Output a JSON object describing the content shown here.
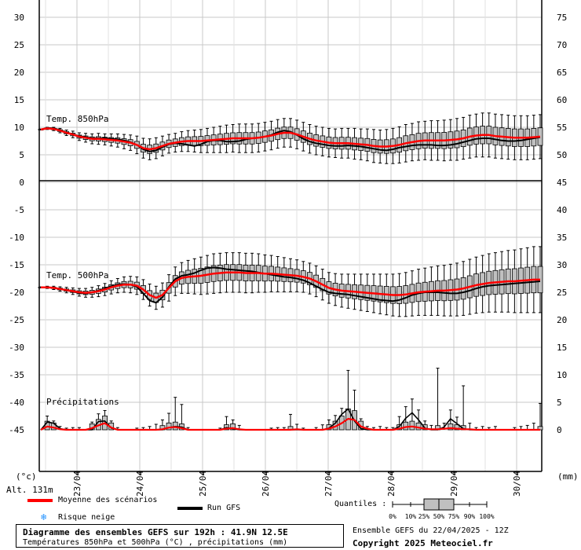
{
  "chart_data": {
    "type": "boxplot",
    "title": "Diagramme des ensembles GEFS sur 192h : 41.9N 12.5E",
    "subtitle": "Températures 850hPa et 500hPa (°C) , précipitations (mm)",
    "left_axis_label": "(°c)",
    "right_axis_label": "(mm)",
    "altitude_label": "Alt. 131m",
    "left_ticks": [
      30,
      25,
      20,
      15,
      10,
      5,
      0,
      -5,
      -10,
      -15,
      -20,
      -25,
      -30,
      -35,
      -40,
      -45
    ],
    "right_ticks": [
      75,
      70,
      65,
      60,
      55,
      50,
      45,
      40,
      35,
      30,
      25,
      20,
      15,
      10,
      5,
      0
    ],
    "x_dates": [
      "23/04",
      "24/04",
      "25/04",
      "26/04",
      "27/04",
      "28/04",
      "29/04",
      "30/04"
    ],
    "panels": [
      {
        "name": "Temp. 850hPa",
        "mean": [
          9.6,
          9.8,
          9.7,
          9.4,
          9.0,
          8.7,
          8.3,
          8.1,
          7.9,
          7.9,
          7.8,
          7.7,
          7.6,
          7.4,
          7.2,
          6.8,
          6.2,
          6.0,
          6.2,
          6.6,
          7.0,
          7.2,
          7.4,
          7.5,
          7.5,
          7.5,
          7.6,
          7.7,
          7.8,
          7.9,
          8.0,
          8.0,
          8.0,
          8.0,
          8.1,
          8.3,
          8.5,
          8.8,
          9.0,
          9.0,
          8.7,
          8.3,
          7.9,
          7.6,
          7.4,
          7.2,
          7.1,
          7.1,
          7.1,
          7.0,
          6.9,
          6.8,
          6.6,
          6.5,
          6.5,
          6.6,
          6.8,
          7.1,
          7.3,
          7.5,
          7.6,
          7.6,
          7.6,
          7.6,
          7.7,
          7.8,
          8.0,
          8.3,
          8.5,
          8.6,
          8.6,
          8.4,
          8.3,
          8.2,
          8.1,
          8.1,
          8.1,
          8.2,
          8.3
        ],
        "gfs": [
          9.6,
          9.9,
          9.8,
          9.5,
          9.1,
          8.7,
          8.4,
          8.2,
          8.0,
          8.0,
          8.0,
          7.9,
          7.8,
          7.6,
          7.3,
          6.8,
          6.0,
          5.6,
          5.8,
          6.4,
          6.9,
          7.1,
          7.0,
          6.8,
          6.6,
          6.9,
          7.4,
          7.6,
          7.6,
          7.4,
          7.4,
          7.5,
          7.8,
          8.0,
          8.1,
          8.3,
          8.6,
          9.1,
          9.4,
          9.2,
          8.6,
          7.9,
          7.4,
          7.1,
          6.9,
          6.7,
          6.6,
          6.6,
          6.7,
          6.6,
          6.5,
          6.3,
          6.1,
          5.9,
          5.8,
          6.0,
          6.3,
          6.5,
          6.7,
          6.8,
          6.8,
          6.8,
          6.7,
          6.7,
          6.8,
          7.0,
          7.3,
          7.6,
          7.9,
          8.0,
          8.0,
          7.8,
          7.6,
          7.5,
          7.5,
          7.6,
          7.8,
          8.0,
          8.2
        ],
        "spread": [
          0.1,
          0.2,
          0.3,
          0.4,
          0.5,
          0.6,
          0.7,
          0.8,
          0.9,
          1.0,
          1.0,
          1.1,
          1.2,
          1.3,
          1.4,
          1.6,
          1.8,
          1.9,
          1.9,
          1.8,
          1.7,
          1.7,
          1.8,
          1.9,
          2.0,
          2.1,
          2.2,
          2.3,
          2.4,
          2.5,
          2.5,
          2.6,
          2.6,
          2.6,
          2.6,
          2.6,
          2.6,
          2.6,
          2.6,
          2.6,
          2.6,
          2.6,
          2.6,
          2.6,
          2.6,
          2.6,
          2.6,
          2.7,
          2.7,
          2.8,
          2.8,
          2.9,
          3.0,
          3.0,
          3.1,
          3.2,
          3.3,
          3.4,
          3.4,
          3.5,
          3.5,
          3.6,
          3.6,
          3.7,
          3.7,
          3.8,
          3.8,
          3.9,
          3.9,
          4.0,
          4.0,
          4.0,
          4.0,
          4.0,
          4.0,
          4.0,
          4.0,
          4.0,
          4.0
        ]
      },
      {
        "name": "Temp. 500hPa",
        "mean": [
          -19.1,
          -19.1,
          -19.2,
          -19.4,
          -19.6,
          -19.8,
          -20.0,
          -20.1,
          -20.0,
          -19.8,
          -19.5,
          -19.1,
          -18.8,
          -18.6,
          -18.6,
          -18.8,
          -19.5,
          -20.5,
          -21.0,
          -20.5,
          -19.2,
          -18.0,
          -17.4,
          -17.2,
          -17.1,
          -17.0,
          -16.8,
          -16.6,
          -16.5,
          -16.4,
          -16.4,
          -16.4,
          -16.5,
          -16.5,
          -16.5,
          -16.6,
          -16.6,
          -16.7,
          -16.8,
          -16.9,
          -17.0,
          -17.2,
          -17.5,
          -18.0,
          -18.6,
          -19.2,
          -19.5,
          -19.7,
          -19.8,
          -19.9,
          -20.0,
          -20.1,
          -20.2,
          -20.3,
          -20.4,
          -20.5,
          -20.5,
          -20.4,
          -20.2,
          -20.0,
          -19.9,
          -19.8,
          -19.7,
          -19.7,
          -19.6,
          -19.5,
          -19.3,
          -19.0,
          -18.7,
          -18.5,
          -18.3,
          -18.2,
          -18.1,
          -18.0,
          -18.0,
          -17.9,
          -17.8,
          -17.7,
          -17.7
        ],
        "gfs": [
          -19.1,
          -19.1,
          -19.2,
          -19.4,
          -19.6,
          -19.9,
          -20.1,
          -20.2,
          -20.0,
          -19.7,
          -19.3,
          -18.9,
          -18.6,
          -18.5,
          -18.6,
          -19.0,
          -20.2,
          -21.5,
          -21.9,
          -20.9,
          -19.0,
          -17.6,
          -17.0,
          -16.8,
          -16.5,
          -16.0,
          -15.6,
          -15.5,
          -15.6,
          -15.8,
          -15.9,
          -16.0,
          -16.1,
          -16.2,
          -16.4,
          -16.6,
          -16.8,
          -17.0,
          -17.2,
          -17.3,
          -17.5,
          -17.8,
          -18.3,
          -18.9,
          -19.5,
          -20.0,
          -20.2,
          -20.3,
          -20.4,
          -20.6,
          -20.8,
          -21.0,
          -21.2,
          -21.4,
          -21.5,
          -21.6,
          -21.4,
          -21.0,
          -20.5,
          -20.2,
          -20.0,
          -20.0,
          -20.0,
          -20.1,
          -20.2,
          -20.2,
          -20.0,
          -19.7,
          -19.3,
          -19.0,
          -18.8,
          -18.7,
          -18.6,
          -18.5,
          -18.4,
          -18.3,
          -18.2,
          -18.1,
          -18.0
        ],
        "spread": [
          0.1,
          0.2,
          0.3,
          0.4,
          0.5,
          0.6,
          0.7,
          0.8,
          0.9,
          1.0,
          1.1,
          1.2,
          1.3,
          1.4,
          1.5,
          1.6,
          1.8,
          2.0,
          2.1,
          2.2,
          2.4,
          2.6,
          2.8,
          3.0,
          3.2,
          3.4,
          3.5,
          3.6,
          3.6,
          3.6,
          3.6,
          3.6,
          3.6,
          3.6,
          3.5,
          3.4,
          3.3,
          3.2,
          3.1,
          3.0,
          2.9,
          2.8,
          2.8,
          2.8,
          2.8,
          2.8,
          2.9,
          3.0,
          3.1,
          3.2,
          3.3,
          3.4,
          3.5,
          3.6,
          3.7,
          3.8,
          3.9,
          4.0,
          4.1,
          4.2,
          4.3,
          4.4,
          4.5,
          4.6,
          4.7,
          4.8,
          4.9,
          5.0,
          5.1,
          5.2,
          5.3,
          5.4,
          5.5,
          5.6,
          5.7,
          5.8,
          5.9,
          6.0,
          6.0
        ]
      },
      {
        "name": "Précipitations",
        "unit": "mm",
        "mean": [
          0,
          0.6,
          0.4,
          0.1,
          0,
          0,
          0,
          0,
          0.3,
          0.8,
          1.2,
          0.4,
          0,
          0,
          0,
          0,
          0,
          0,
          0,
          0.1,
          0.4,
          0.5,
          0.3,
          0,
          0,
          0,
          0,
          0,
          0,
          0.2,
          0.3,
          0.1,
          0,
          0,
          0,
          0,
          0,
          0,
          0,
          0,
          0.1,
          0,
          0,
          0,
          0,
          0.2,
          0.6,
          1.2,
          2.0,
          1.8,
          0.6,
          0.2,
          0,
          0,
          0,
          0,
          0.2,
          0.5,
          0.6,
          0.4,
          0.2,
          0.1,
          0.1,
          0.2,
          0.3,
          0.2,
          0.1,
          0.1,
          0,
          0,
          0,
          0,
          0,
          0,
          0,
          0,
          0,
          0,
          0
        ],
        "gfs": [
          0,
          1.4,
          1.2,
          0.2,
          0,
          0,
          0,
          0,
          0,
          1.5,
          1.6,
          0.3,
          0,
          0,
          0,
          0,
          0,
          0,
          0,
          0,
          0.4,
          0.6,
          0.5,
          0,
          0,
          0,
          0,
          0,
          0,
          0.4,
          0.2,
          0,
          0,
          0,
          0,
          0,
          0,
          0,
          0,
          0,
          0,
          0,
          0,
          0,
          0,
          0.3,
          1.2,
          2.8,
          3.8,
          1.6,
          0.2,
          0,
          0,
          0,
          0,
          0,
          0.6,
          2.1,
          3.1,
          1.8,
          0.3,
          0,
          0,
          0.5,
          2.0,
          1.1,
          0.2,
          0,
          0,
          0,
          0,
          0,
          0,
          0,
          0,
          0,
          0,
          0,
          0
        ],
        "max": [
          0.2,
          2.5,
          1.6,
          0.6,
          0.3,
          0.4,
          0.4,
          0.2,
          1.4,
          2.9,
          3.5,
          1.6,
          0.4,
          0.2,
          0.2,
          0.3,
          0.4,
          0.6,
          1.0,
          1.8,
          3.0,
          5.9,
          4.6,
          0.4,
          0.2,
          0.2,
          0.1,
          0.2,
          0.3,
          2.4,
          1.8,
          0.8,
          0.2,
          0.1,
          0.1,
          0.2,
          0.3,
          0.4,
          0.4,
          2.8,
          1.0,
          0.3,
          0.2,
          0.4,
          0.9,
          1.8,
          2.6,
          3.9,
          10.8,
          7.2,
          2.0,
          0.6,
          0.4,
          0.6,
          0.4,
          0.4,
          2.4,
          4.2,
          5.6,
          3.6,
          1.6,
          0.8,
          11.2,
          1.2,
          3.6,
          2.3,
          8.0,
          1.2,
          0.4,
          0.6,
          0.4,
          0.6,
          0.2,
          0.2,
          0.4,
          0.6,
          0.8,
          1.2,
          4.8
        ]
      }
    ],
    "legend": {
      "mean_label": "Moyenne des scénarios",
      "gfs_label": "Run GFS",
      "snow_label": "Risque neige",
      "quantiles_label": "Quantiles :",
      "quantile_ticks": [
        "0%",
        "10%",
        "25%",
        "50%",
        "75%",
        "90%",
        "100%"
      ]
    },
    "colors": {
      "mean": "#ff0000",
      "gfs": "#000000",
      "box": "#c0c0c0",
      "grid": "#c8c8c8",
      "snow": "#1e90ff"
    },
    "grid": true
  },
  "footer": {
    "ensemble_run": "Ensemble GEFS du 22/04/2025 - 12Z",
    "copyright": "Copyright 2025 Meteociel.fr"
  }
}
